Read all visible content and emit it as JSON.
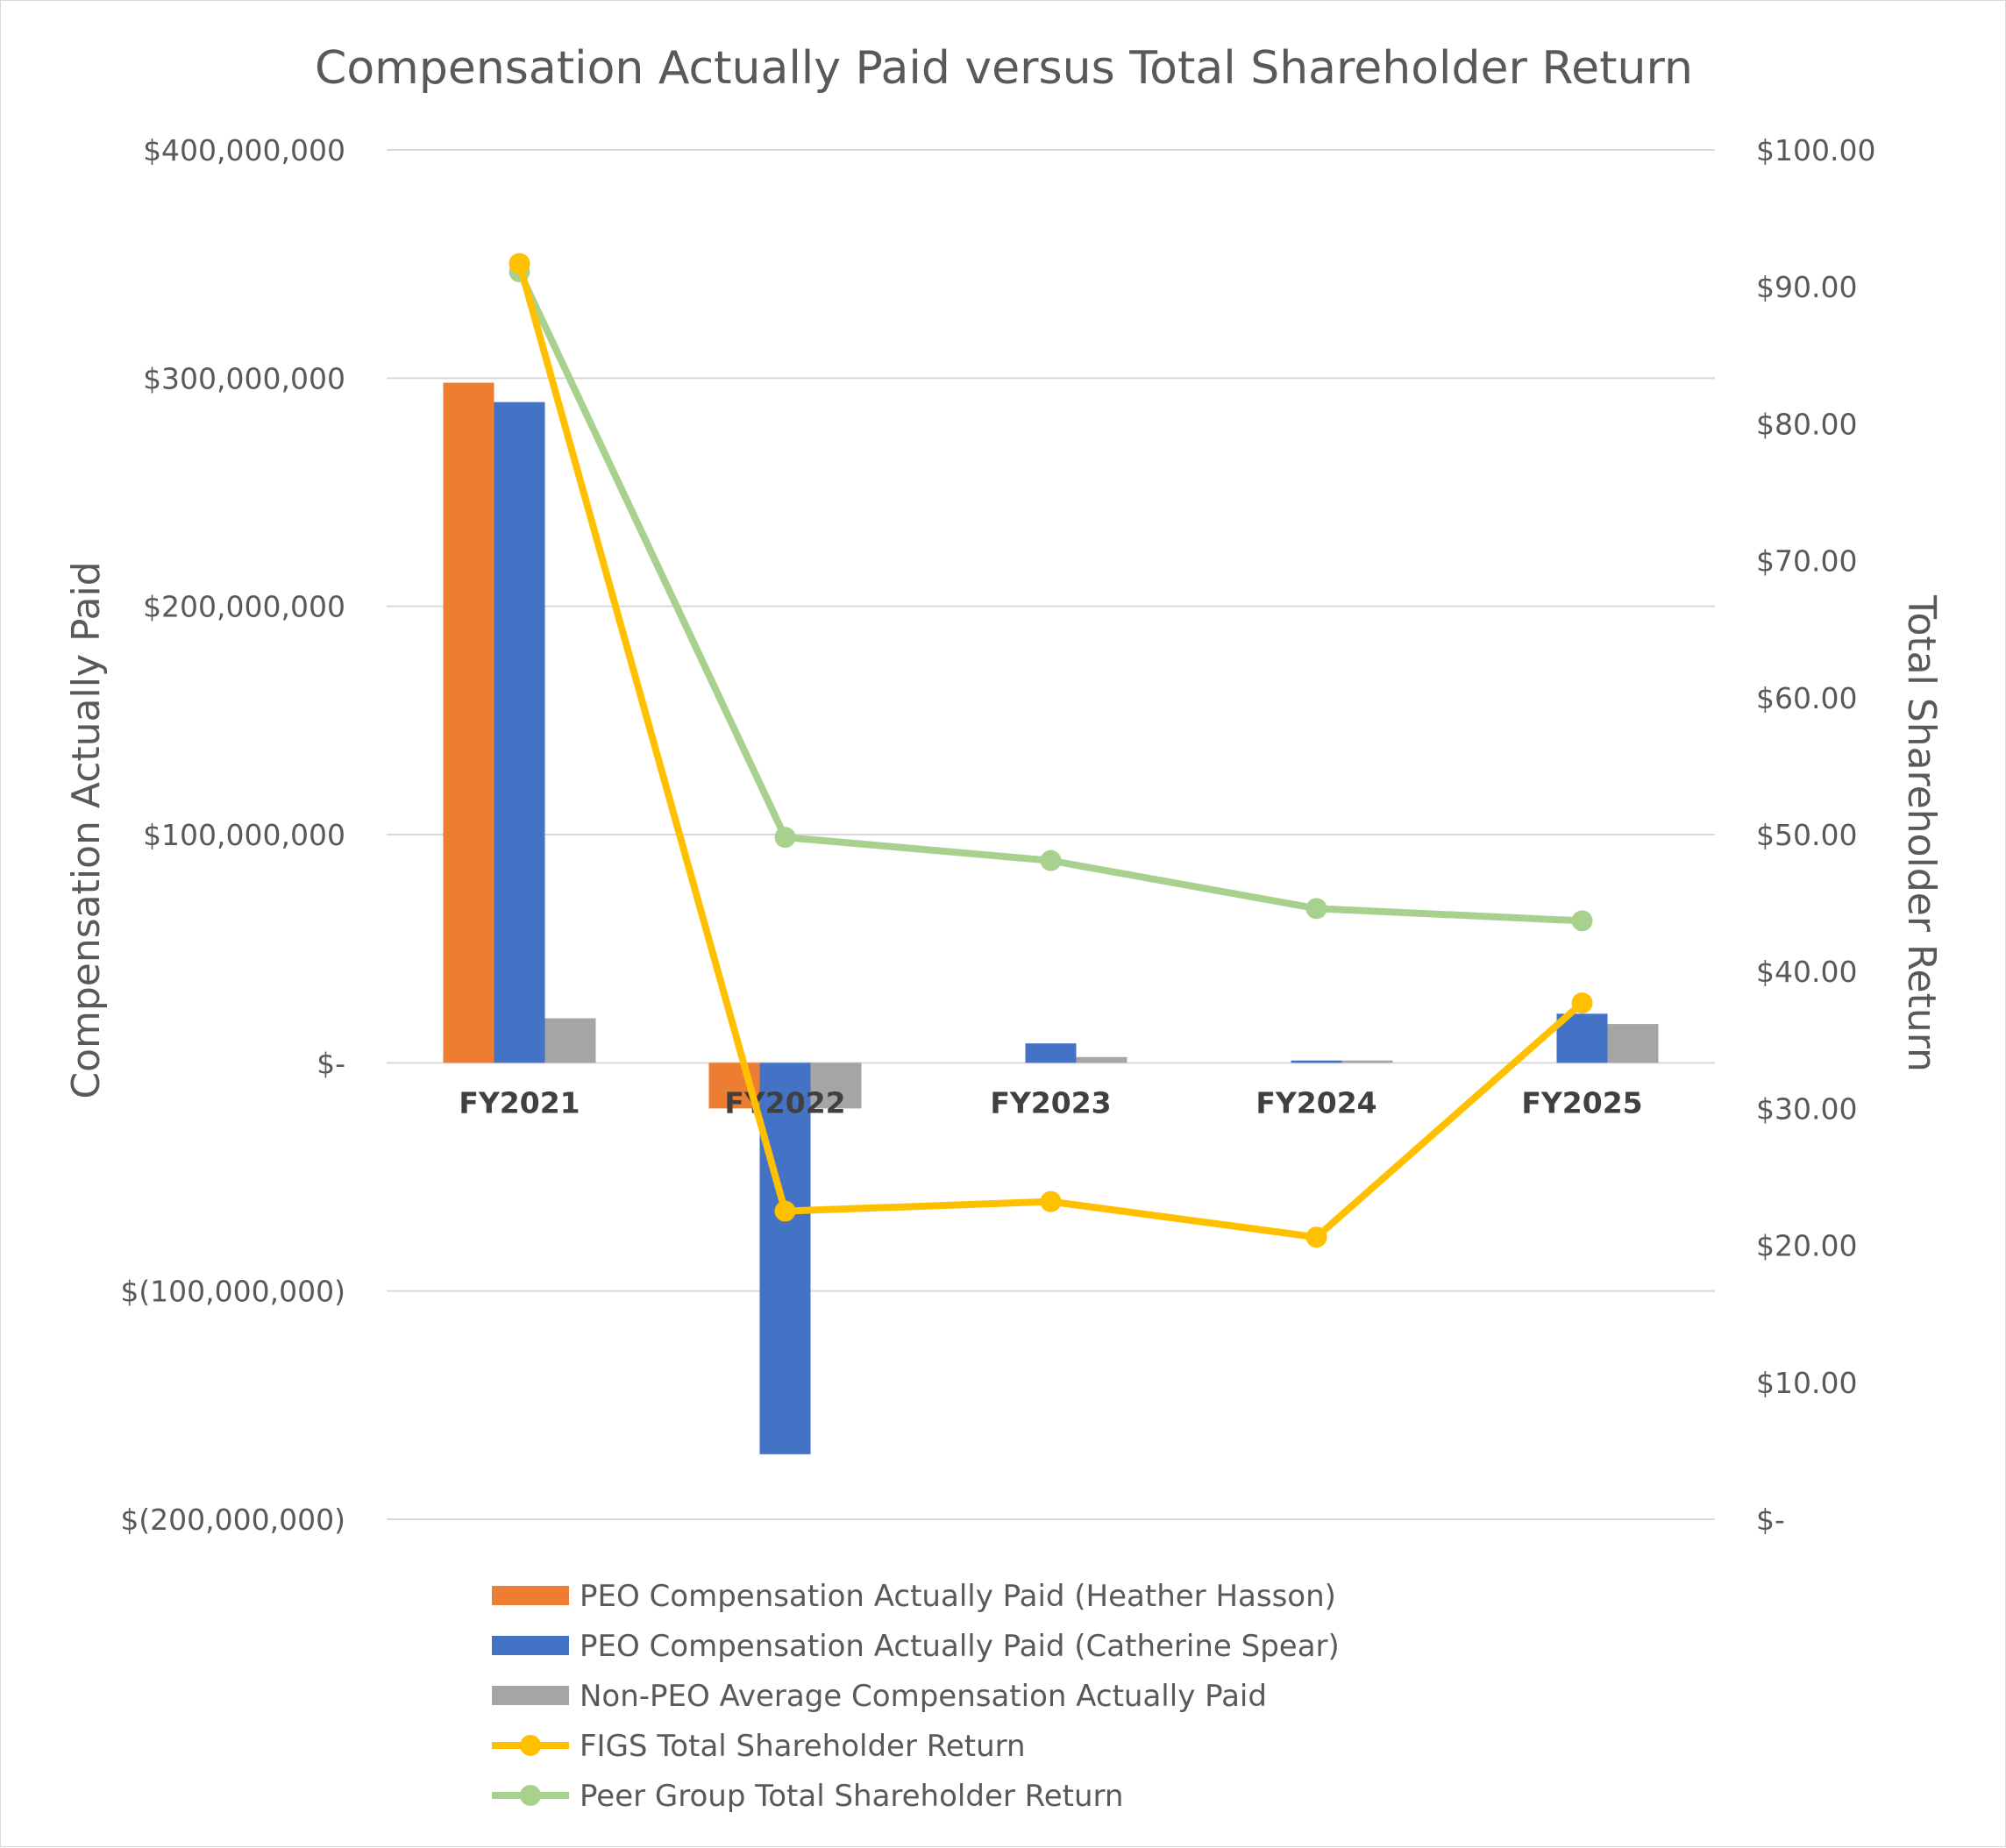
{
  "chart_data": {
    "type": "bar",
    "title": "Compensation Actually Paid versus Total Shareholder Return",
    "ylabel_left": "Compensation Actually Paid",
    "ylabel_right": "Total Shareholder Return",
    "categories": [
      "FY2021",
      "FY2022",
      "FY2023",
      "FY2024",
      "FY2025"
    ],
    "ylim_left": [
      -200000000,
      400000000
    ],
    "ylim_right": [
      0,
      100
    ],
    "left_ticks": [
      {
        "value": 400000000,
        "label": "$400,000,000"
      },
      {
        "value": 300000000,
        "label": "$300,000,000"
      },
      {
        "value": 200000000,
        "label": "$200,000,000"
      },
      {
        "value": 100000000,
        "label": "$100,000,000"
      },
      {
        "value": 0,
        "label": "$-"
      },
      {
        "value": -100000000,
        "label": "$(100,000,000)"
      },
      {
        "value": -200000000,
        "label": "$(200,000,000)"
      }
    ],
    "right_ticks": [
      {
        "value": 100,
        "label": "$100.00"
      },
      {
        "value": 90,
        "label": "$90.00"
      },
      {
        "value": 80,
        "label": "$80.00"
      },
      {
        "value": 70,
        "label": "$70.00"
      },
      {
        "value": 60,
        "label": "$60.00"
      },
      {
        "value": 50,
        "label": "$50.00"
      },
      {
        "value": 40,
        "label": "$40.00"
      },
      {
        "value": 30,
        "label": "$30.00"
      },
      {
        "value": 20,
        "label": "$20.00"
      },
      {
        "value": 10,
        "label": "$10.00"
      },
      {
        "value": 0,
        "label": "$-"
      }
    ],
    "bar_series": [
      {
        "name": "PEO Compensation Actually Paid (Heather Hasson)",
        "color": "#ED7D31",
        "values": [
          298000000,
          -20000000,
          0,
          0,
          0
        ]
      },
      {
        "name": "PEO Compensation Actually Paid (Catherine Spear)",
        "color": "#4472C4",
        "values": [
          289500000,
          -171500000,
          8500000,
          1000000,
          21500000
        ]
      },
      {
        "name": "Non-PEO Average Compensation Actually Paid",
        "color": "#A5A5A5",
        "values": [
          19500000,
          -20000000,
          2500000,
          1000000,
          17000000
        ]
      }
    ],
    "line_series": [
      {
        "name": "FIGS Total Shareholder Return",
        "color": "#FFC000",
        "values": [
          91.7,
          22.5,
          23.2,
          20.6,
          37.7
        ]
      },
      {
        "name": "Peer Group Total Shareholder Return",
        "color": "#A9D18E",
        "values": [
          91.1,
          49.8,
          48.1,
          44.6,
          43.7
        ]
      }
    ],
    "grid": true,
    "legend_position": "bottom"
  }
}
